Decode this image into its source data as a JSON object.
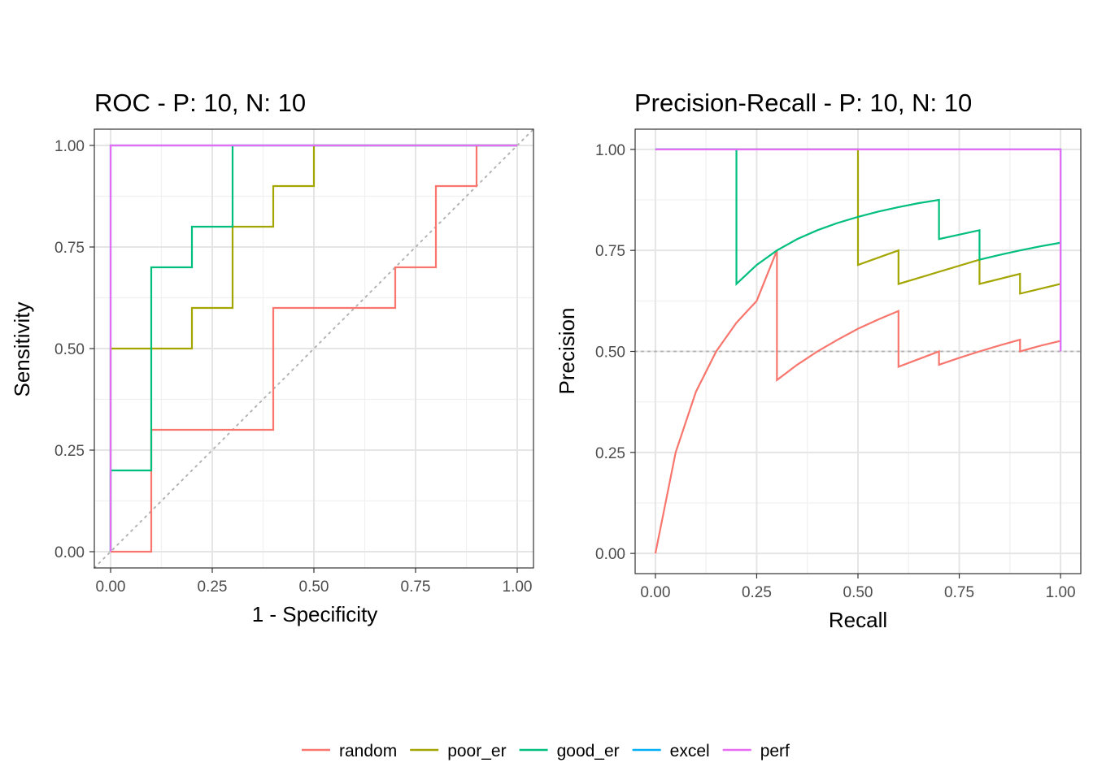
{
  "chart_data": [
    {
      "type": "line",
      "title": "ROC - P: 10, N: 10",
      "xlabel": "1 - Specificity",
      "ylabel": "Sensitivity",
      "xlim": [
        -0.04,
        1.04
      ],
      "ylim": [
        -0.04,
        1.04
      ],
      "x_ticks": [
        "0.00",
        "0.25",
        "0.50",
        "0.75",
        "1.00"
      ],
      "y_ticks": [
        "0.00",
        "0.25",
        "0.50",
        "0.75",
        "1.00"
      ],
      "grid": true,
      "reference_line": "diagonal",
      "series": [
        {
          "name": "random",
          "x": [
            0,
            0.1,
            0.1,
            0.4,
            0.4,
            0.7,
            0.7,
            0.8,
            0.8,
            0.9,
            0.9,
            1.0
          ],
          "y": [
            0,
            0,
            0.3,
            0.3,
            0.6,
            0.6,
            0.7,
            0.7,
            0.9,
            0.9,
            1.0,
            1.0
          ]
        },
        {
          "name": "poor_er",
          "x": [
            0,
            0,
            0.2,
            0.2,
            0.3,
            0.3,
            0.4,
            0.4,
            0.5,
            0.5,
            1.0
          ],
          "y": [
            0,
            0.5,
            0.5,
            0.6,
            0.6,
            0.8,
            0.8,
            0.9,
            0.9,
            1.0,
            1.0
          ]
        },
        {
          "name": "good_er",
          "x": [
            0,
            0,
            0.1,
            0.1,
            0.2,
            0.2,
            0.3,
            0.3,
            1.0
          ],
          "y": [
            0,
            0.2,
            0.2,
            0.7,
            0.7,
            0.8,
            0.8,
            1.0,
            1.0
          ]
        },
        {
          "name": "excel",
          "x": [
            0,
            0,
            1.0
          ],
          "y": [
            0,
            1.0,
            1.0
          ]
        },
        {
          "name": "perf",
          "x": [
            0,
            0,
            1.0
          ],
          "y": [
            0,
            1.0,
            1.0
          ]
        }
      ]
    },
    {
      "type": "line",
      "title": "Precision-Recall - P: 10, N: 10",
      "xlabel": "Recall",
      "ylabel": "Precision",
      "xlim": [
        -0.05,
        1.05
      ],
      "ylim": [
        -0.05,
        1.05
      ],
      "x_ticks": [
        "0.00",
        "0.25",
        "0.50",
        "0.75",
        "1.00"
      ],
      "y_ticks": [
        "0.00",
        "0.25",
        "0.50",
        "0.75",
        "1.00"
      ],
      "grid": true,
      "reference_line": "horizontal at 0.5",
      "series": [
        {
          "name": "random",
          "x": [
            0.0,
            0.05,
            0.1,
            0.15,
            0.2,
            0.25,
            0.3,
            0.3,
            0.35,
            0.4,
            0.45,
            0.5,
            0.55,
            0.6,
            0.6,
            0.65,
            0.7,
            0.7,
            0.75,
            0.8,
            0.85,
            0.9,
            0.9,
            0.95,
            1.0
          ],
          "y": [
            0.0,
            0.25,
            0.4,
            0.5,
            0.571,
            0.625,
            0.75,
            0.429,
            0.467,
            0.5,
            0.529,
            0.556,
            0.579,
            0.6,
            0.462,
            0.481,
            0.5,
            0.467,
            0.484,
            0.5,
            0.515,
            0.529,
            0.5,
            0.514,
            0.526
          ]
        },
        {
          "name": "poor_er",
          "x": [
            0.0,
            0.5,
            0.5,
            0.6,
            0.6,
            0.8,
            0.8,
            0.9,
            0.9,
            1.0
          ],
          "y": [
            1.0,
            1.0,
            0.714,
            0.75,
            0.667,
            0.727,
            0.667,
            0.692,
            0.643,
            0.667
          ]
        },
        {
          "name": "good_er",
          "x": [
            0.0,
            0.2,
            0.2,
            0.25,
            0.3,
            0.35,
            0.4,
            0.45,
            0.5,
            0.55,
            0.6,
            0.65,
            0.7,
            0.7,
            0.8,
            0.8,
            0.85,
            0.9,
            0.95,
            1.0
          ],
          "y": [
            1.0,
            1.0,
            0.667,
            0.714,
            0.75,
            0.778,
            0.8,
            0.818,
            0.833,
            0.846,
            0.857,
            0.867,
            0.875,
            0.778,
            0.8,
            0.727,
            0.739,
            0.75,
            0.76,
            0.769
          ]
        },
        {
          "name": "excel",
          "x": [
            0.0,
            1.0,
            1.0
          ],
          "y": [
            1.0,
            1.0,
            0.5
          ]
        },
        {
          "name": "perf",
          "x": [
            0.0,
            1.0,
            1.0
          ],
          "y": [
            1.0,
            1.0,
            0.5
          ]
        }
      ]
    }
  ],
  "legend": {
    "position": "bottom",
    "items": [
      {
        "name": "random",
        "color": "#F8766D"
      },
      {
        "name": "poor_er",
        "color": "#A3A500"
      },
      {
        "name": "good_er",
        "color": "#00BF7D"
      },
      {
        "name": "excel",
        "color": "#00B0F6"
      },
      {
        "name": "perf",
        "color": "#E76BF3"
      }
    ]
  }
}
